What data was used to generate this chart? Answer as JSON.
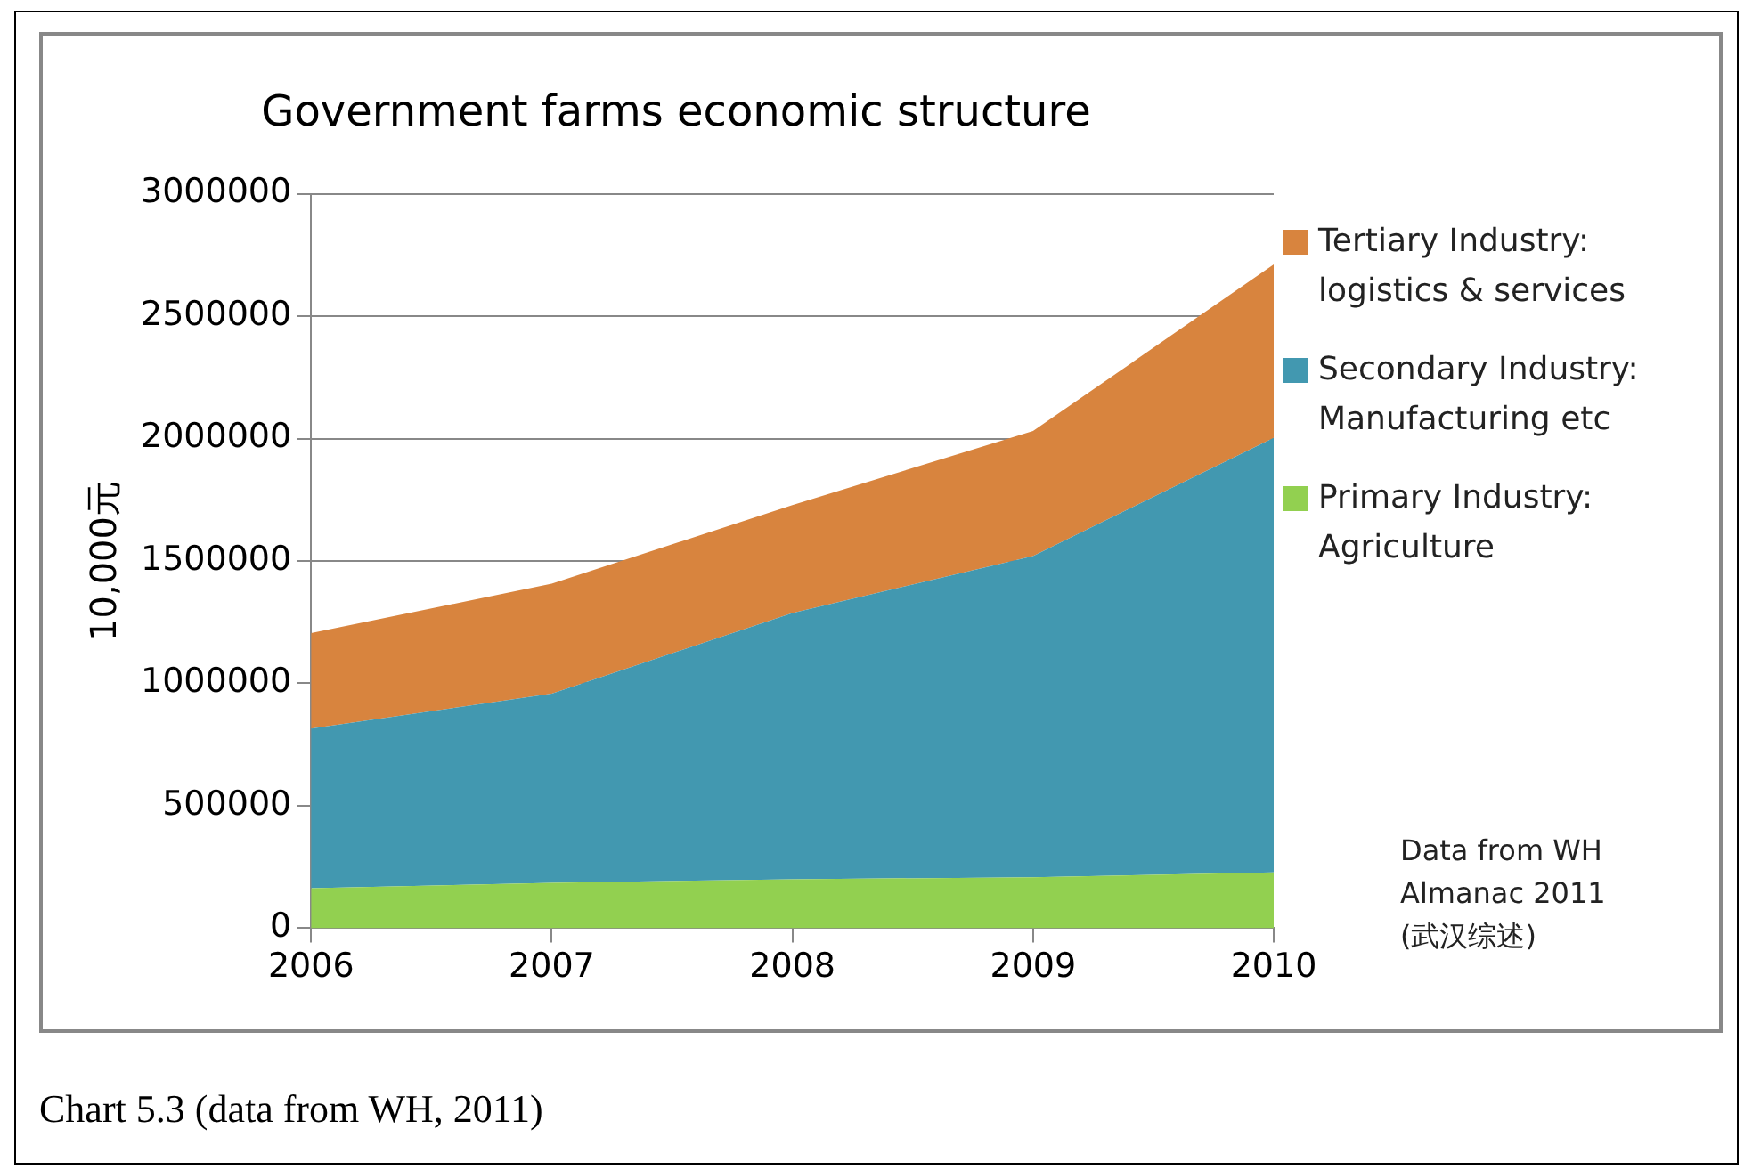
{
  "chart_data": {
    "type": "area",
    "title": "Government farms economic structure",
    "ylabel": "10,000元",
    "categories": [
      "2006",
      "2007",
      "2008",
      "2009",
      "2010"
    ],
    "stacked": true,
    "series": [
      {
        "name": "Primary Industry: Agriculture",
        "color": "#92d050",
        "values": [
          163000,
          185000,
          200000,
          208000,
          228000
        ]
      },
      {
        "name": "Secondary Industry: Manufacturing etc",
        "color": "#4298b0",
        "values": [
          652000,
          773000,
          1087000,
          1312000,
          1775000
        ]
      },
      {
        "name": "Tertiary Industry: logistics & services",
        "color": "#d8843e",
        "values": [
          390000,
          449000,
          441000,
          511000,
          708000
        ]
      }
    ],
    "ylim": [
      0,
      3000000
    ],
    "yticks": [
      0,
      500000,
      1000000,
      1500000,
      2000000,
      2500000,
      3000000
    ],
    "grid": "y",
    "legend": "right",
    "annotations": [
      "Data from WH Almanac 2011 (武汉综述)",
      "Chart 5.3 (data from WH, 2011)"
    ]
  }
}
